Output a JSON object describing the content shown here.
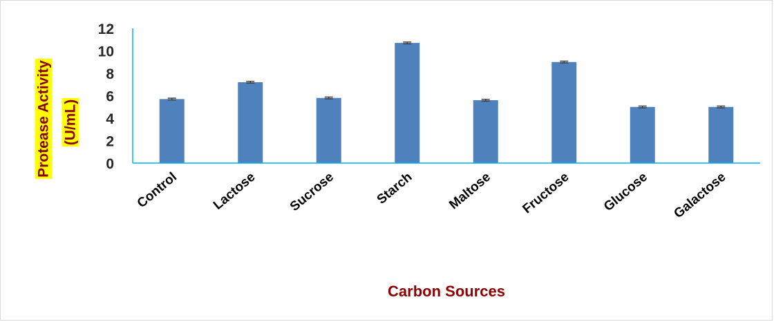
{
  "chart_data": {
    "type": "bar",
    "categories": [
      "Control",
      "Lactose",
      "Sucrose",
      "Starch",
      "Maltose",
      "Fructose",
      "Glucose",
      "Galactose"
    ],
    "series": [
      {
        "values": [
          5.7,
          7.2,
          5.8,
          10.7,
          5.6,
          9.0,
          5.0,
          5.0
        ],
        "error": [
          0.08,
          0.08,
          0.08,
          0.08,
          0.08,
          0.08,
          0.08,
          0.08
        ]
      }
    ],
    "title": "",
    "xlabel": "Carbon Sources",
    "ylabel_lines": [
      "Protease Activity",
      "(U/mL)"
    ],
    "ylim": [
      0,
      12
    ],
    "yticks": [
      0,
      2,
      4,
      6,
      8,
      10,
      12
    ],
    "grid": false,
    "legend": "none",
    "colors": {
      "bar": "#4f81bd",
      "axis": "#00b0f0",
      "error_bar": "#404040",
      "axis_title": "#8b0000",
      "ylabel_highlight": "#ffff00"
    }
  }
}
